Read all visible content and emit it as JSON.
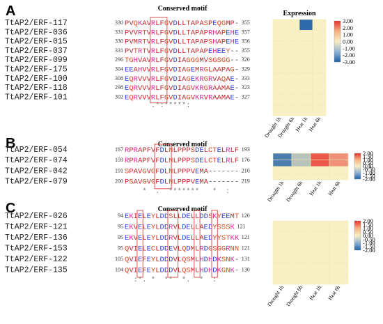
{
  "panels": [
    {
      "letter": "A",
      "title": "Conserved motif",
      "expr_title": "Expression",
      "genes": [
        "TtAP2/ERF-117",
        "TtAP2/ERF-036",
        "TtAP2/ERF-015",
        "TtAP2/ERF-037",
        "TtAP2/ERF-099",
        "TtAP2/ERF-175",
        "TtAP2/ERF-100",
        "TtAP2/ERF-118",
        "TtAP2/ERF-101"
      ],
      "starts": [
        "330",
        "331",
        "330",
        "331",
        "296",
        "304",
        "308",
        "298",
        "302"
      ],
      "seqs": [
        "PVQKAVRLFGVDLLTAPASPEQGMP-",
        "PVVRTVRLFGVDLLTAPAPRHAPEHE",
        "PVMRTVRLFGVDLLTAPAPSHAPEHE",
        "PVTRTVRLFGVDLLTAPAPEHEEY--",
        "TGHVAVRLFGVDIAGGGMVSGSGG--",
        "EEAHVVRLFGVDIAGEMRGLAAPAG-",
        "EQRVVVRLFGVDIAGEKRGRVAQAE-",
        "EQRVVVRLFGVDIAGVKRGRAAMAE-",
        "EQRVVVRLFGVDIAGVKRVRAAMAE-"
      ],
      "ends": [
        "355",
        "357",
        "356",
        "355",
        "320",
        "329",
        "333",
        "323",
        "327"
      ],
      "consensus": "      .*:*****:          ",
      "conditions": [
        "Drought 1h",
        "Drought 6h",
        "Heat 1h",
        "Heat 6h"
      ],
      "expression": [
        [
          0,
          0,
          -2.8,
          0
        ],
        [
          0,
          0,
          0,
          0
        ],
        [
          0,
          0,
          0,
          0
        ],
        [
          0,
          0,
          0,
          0
        ],
        [
          0,
          0,
          0,
          0
        ],
        [
          0,
          0,
          0,
          0
        ],
        [
          0,
          0,
          0,
          0
        ],
        [
          0,
          0,
          0,
          0
        ],
        [
          0,
          0,
          0,
          0
        ]
      ],
      "colorbar_labels": [
        "3.00",
        "2.00",
        "1.00",
        "0.00",
        "-1.00",
        "-2.00",
        "-3.00"
      ]
    },
    {
      "letter": "B",
      "title": "Conserved motif",
      "genes": [
        "TtAP2/ERF-054",
        "TtAP2/ERF-074",
        "TtAP2/ERF-042",
        "TtAP2/ERF-079"
      ],
      "starts": [
        "167",
        "159",
        "191",
        "200"
      ],
      "seqs": [
        "RPRAPFVFDLNLPPPSDELCTELRLF",
        "RPRAPFVFDLNLPPPSDELCTELRLF",
        "SPAVGVGFDLNLPPPVEMA-------",
        "PSAVGVGFDLNLPPPVEMA-------"
      ],
      "ends": [
        "193",
        "176",
        "210",
        "219"
      ],
      "consensus": "    *  .  *******   *  :",
      "conditions": [
        "Drought 1h",
        "Drought 6h",
        "Heat 1h",
        "Heat 6h"
      ],
      "expression": [
        [
          -1.6,
          -0.6,
          1.6,
          1.0
        ],
        [
          -1.6,
          -0.6,
          1.6,
          1.0
        ],
        [
          0,
          0,
          0,
          0
        ],
        [
          0,
          0,
          0,
          0
        ]
      ],
      "colorbar_labels": [
        "2.00",
        "1.50",
        "1.00",
        "0.50",
        "0.00",
        "-0.50",
        "-1.00",
        "-1.50",
        "-2.00"
      ]
    },
    {
      "letter": "C",
      "title": "Conserved motif",
      "genes": [
        "TtAP2/ERF-026",
        "TtAP2/ERF-121",
        "TtAP2/ERF-136",
        "TtAP2/ERF-153",
        "TtAP2/ERF-122",
        "TtAP2/ERF-135"
      ],
      "starts": [
        "94",
        "95",
        "95",
        "95",
        "105",
        "104"
      ],
      "seqs": [
        "EKIELEYLDDSLLDELLDDSKYEEMT",
        "EKVELEYLDDRVLDELLAEDYSSSK",
        "EKVELEYLDDRVLDELLAEDYYSTKK",
        "QVIELECLDDEVLQDMLRDGSGGRNN",
        "QVIEFEYLDDDVLQSMLHDHDKSNK-",
        "QVIEFEYLDDDVLQSMLHDHDKGNK-"
      ],
      "ends": [
        "120",
        "121",
        "121",
        "121",
        "131",
        "130"
      ],
      "consensus": "  :*. *  **  *.  *  :  ",
      "conditions": [
        "Drought 1h",
        "Drought 6h",
        "Heat 1h",
        "Heat 6h"
      ],
      "expression": [
        [
          0,
          0,
          0,
          0
        ],
        [
          0,
          0,
          0,
          0
        ],
        [
          0,
          0,
          0,
          0
        ],
        [
          0,
          0,
          0,
          0
        ],
        [
          0,
          0,
          0,
          0
        ],
        [
          0,
          0,
          0,
          0
        ]
      ],
      "colorbar_labels": [
        "2.00",
        "1.50",
        "1.00",
        "0.50",
        "0.00",
        "-0.50",
        "-1.00",
        "-1.50",
        "-2.00"
      ]
    }
  ]
}
